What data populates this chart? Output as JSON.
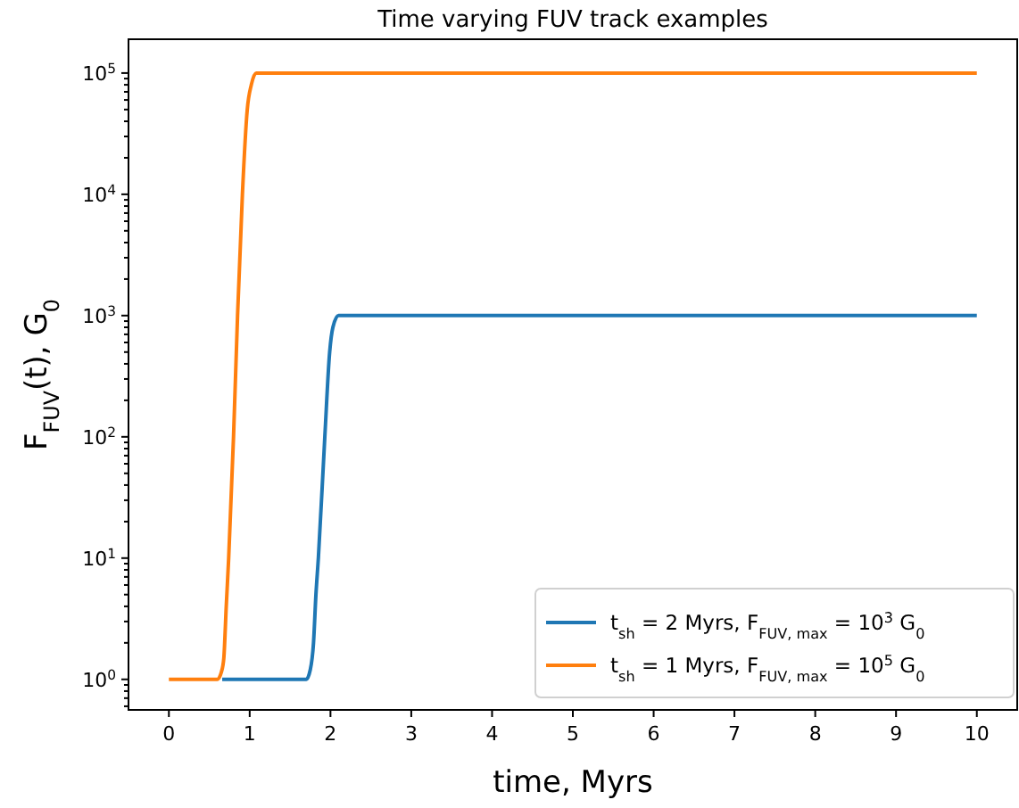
{
  "chart_data": {
    "type": "line",
    "title": "Time varying FUV track examples",
    "xlabel": "time, Myrs",
    "ylabel": "F$_{FUV}$(t), G$_{0}$",
    "log": "y",
    "grid": false,
    "legend": "bottom right",
    "xlim": [
      -0.5,
      10.5
    ],
    "xticks": [
      0,
      1,
      2,
      3,
      4,
      5,
      6,
      7,
      8,
      9,
      10
    ],
    "ylim": [
      0.56,
      190000
    ],
    "yticks": [
      {
        "value": 1,
        "label": "10$^{0}$"
      },
      {
        "value": 10,
        "label": "10$^{1}$"
      },
      {
        "value": 100,
        "label": "10$^{2}$"
      },
      {
        "value": 1000,
        "label": "10$^{3}$"
      },
      {
        "value": 10000,
        "label": "10$^{4}$"
      },
      {
        "value": 100000,
        "label": "10$^{5}$"
      },
      {
        "value": 0.6,
        "label": null
      },
      {
        "value": 0.7,
        "label": null
      },
      {
        "value": 0.8,
        "label": null
      },
      {
        "value": 0.9,
        "label": null
      },
      {
        "value": 2,
        "label": null
      },
      {
        "value": 3,
        "label": null
      },
      {
        "value": 4,
        "label": null
      },
      {
        "value": 5,
        "label": null
      },
      {
        "value": 6,
        "label": null
      },
      {
        "value": 7,
        "label": null
      },
      {
        "value": 8,
        "label": null
      },
      {
        "value": 9,
        "label": null
      },
      {
        "value": 20,
        "label": null
      },
      {
        "value": 30,
        "label": null
      },
      {
        "value": 40,
        "label": null
      },
      {
        "value": 50,
        "label": null
      },
      {
        "value": 60,
        "label": null
      },
      {
        "value": 70,
        "label": null
      },
      {
        "value": 80,
        "label": null
      },
      {
        "value": 90,
        "label": null
      },
      {
        "value": 200,
        "label": null
      },
      {
        "value": 300,
        "label": null
      },
      {
        "value": 400,
        "label": null
      },
      {
        "value": 500,
        "label": null
      },
      {
        "value": 600,
        "label": null
      },
      {
        "value": 700,
        "label": null
      },
      {
        "value": 800,
        "label": null
      },
      {
        "value": 900,
        "label": null
      },
      {
        "value": 2000,
        "label": null
      },
      {
        "value": 3000,
        "label": null
      },
      {
        "value": 4000,
        "label": null
      },
      {
        "value": 5000,
        "label": null
      },
      {
        "value": 6000,
        "label": null
      },
      {
        "value": 7000,
        "label": null
      },
      {
        "value": 8000,
        "label": null
      },
      {
        "value": 9000,
        "label": null
      },
      {
        "value": 20000,
        "label": null
      },
      {
        "value": 30000,
        "label": null
      },
      {
        "value": 40000,
        "label": null
      },
      {
        "value": 50000,
        "label": null
      },
      {
        "value": 60000,
        "label": null
      },
      {
        "value": 70000,
        "label": null
      },
      {
        "value": 80000,
        "label": null
      },
      {
        "value": 90000,
        "label": null
      }
    ],
    "series": [
      {
        "name": "t$_{sh}$ = 2 Myrs, F$_{FUV, max}$ = 10$^{3}$ G$_{0}$",
        "color": "#1f77b4",
        "x": [
          0.66,
          1.7,
          1.75,
          1.79,
          1.82,
          1.85,
          1.93,
          1.99,
          2.03,
          2.1,
          10
        ],
        "values": [
          1,
          1,
          1.2,
          2,
          5,
          10,
          100,
          500,
          800,
          1000,
          1000
        ]
      },
      {
        "name": "t$_{sh}$ = 1 Myrs, F$_{FUV, max}$ = 10$^{5}$ G$_{0}$",
        "color": "#ff7f0e",
        "x": [
          0,
          0.6,
          0.65,
          0.68,
          0.71,
          0.74,
          0.8,
          0.85,
          0.91,
          0.97,
          1.02,
          1.08,
          10
        ],
        "values": [
          1,
          1,
          1.15,
          1.5,
          4,
          10,
          100,
          1000,
          10000,
          50000,
          80000,
          100000,
          100000
        ]
      }
    ]
  }
}
